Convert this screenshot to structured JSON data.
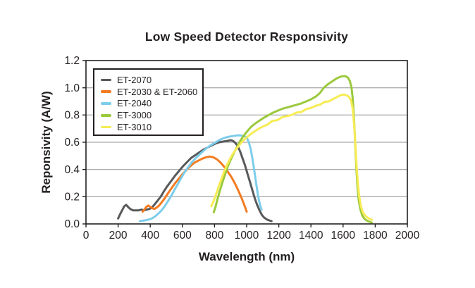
{
  "chart_data": {
    "type": "line",
    "title": "Low Speed Detector Responsivity",
    "xlabel": "Wavelength (nm)",
    "ylabel": "Reponsivity (A/W)",
    "xlim": [
      0,
      2000
    ],
    "ylim": [
      0,
      1.2
    ],
    "xticks": [
      0,
      200,
      400,
      600,
      800,
      1000,
      1200,
      1400,
      1600,
      1800,
      2000
    ],
    "yticks": [
      0.0,
      0.2,
      0.4,
      0.6,
      0.8,
      1.0,
      1.2
    ],
    "grid": "horizontal-only",
    "legend_position": "top-left-inside",
    "axis_color": "#231f20",
    "grid_color": "#8f9093",
    "series": [
      {
        "name": "ET-2070",
        "color": "#58595b",
        "points": [
          [
            200,
            0.04
          ],
          [
            212,
            0.07
          ],
          [
            225,
            0.1
          ],
          [
            238,
            0.13
          ],
          [
            250,
            0.14
          ],
          [
            262,
            0.125
          ],
          [
            275,
            0.11
          ],
          [
            292,
            0.1
          ],
          [
            310,
            0.1
          ],
          [
            328,
            0.1
          ],
          [
            345,
            0.105
          ],
          [
            362,
            0.1
          ],
          [
            378,
            0.105
          ],
          [
            395,
            0.11
          ],
          [
            410,
            0.12
          ],
          [
            425,
            0.14
          ],
          [
            445,
            0.17
          ],
          [
            465,
            0.2
          ],
          [
            485,
            0.24
          ],
          [
            505,
            0.275
          ],
          [
            530,
            0.315
          ],
          [
            555,
            0.355
          ],
          [
            580,
            0.39
          ],
          [
            605,
            0.425
          ],
          [
            630,
            0.455
          ],
          [
            655,
            0.485
          ],
          [
            680,
            0.505
          ],
          [
            705,
            0.525
          ],
          [
            730,
            0.545
          ],
          [
            755,
            0.56
          ],
          [
            780,
            0.575
          ],
          [
            805,
            0.59
          ],
          [
            830,
            0.6
          ],
          [
            855,
            0.605
          ],
          [
            880,
            0.61
          ],
          [
            900,
            0.615
          ],
          [
            915,
            0.61
          ],
          [
            930,
            0.595
          ],
          [
            945,
            0.57
          ],
          [
            960,
            0.53
          ],
          [
            975,
            0.48
          ],
          [
            990,
            0.43
          ],
          [
            1005,
            0.37
          ],
          [
            1020,
            0.31
          ],
          [
            1035,
            0.25
          ],
          [
            1050,
            0.19
          ],
          [
            1065,
            0.14
          ],
          [
            1080,
            0.1
          ],
          [
            1095,
            0.065
          ],
          [
            1110,
            0.045
          ],
          [
            1130,
            0.03
          ],
          [
            1155,
            0.02
          ]
        ]
      },
      {
        "name": "ET-2030 & ET-2060",
        "color": "#f37b21",
        "points": [
          [
            352,
            0.09
          ],
          [
            363,
            0.105
          ],
          [
            376,
            0.125
          ],
          [
            388,
            0.135
          ],
          [
            400,
            0.125
          ],
          [
            413,
            0.115
          ],
          [
            426,
            0.11
          ],
          [
            440,
            0.12
          ],
          [
            455,
            0.135
          ],
          [
            472,
            0.16
          ],
          [
            488,
            0.185
          ],
          [
            505,
            0.215
          ],
          [
            528,
            0.255
          ],
          [
            552,
            0.295
          ],
          [
            576,
            0.33
          ],
          [
            600,
            0.365
          ],
          [
            625,
            0.395
          ],
          [
            650,
            0.425
          ],
          [
            675,
            0.45
          ],
          [
            700,
            0.465
          ],
          [
            725,
            0.48
          ],
          [
            748,
            0.49
          ],
          [
            770,
            0.495
          ],
          [
            792,
            0.49
          ],
          [
            815,
            0.475
          ],
          [
            838,
            0.45
          ],
          [
            860,
            0.42
          ],
          [
            882,
            0.385
          ],
          [
            905,
            0.345
          ],
          [
            928,
            0.295
          ],
          [
            950,
            0.24
          ],
          [
            970,
            0.185
          ],
          [
            988,
            0.13
          ],
          [
            1000,
            0.09
          ]
        ]
      },
      {
        "name": "ET-2040",
        "color": "#7dcdeb",
        "points": [
          [
            335,
            0.02
          ],
          [
            360,
            0.025
          ],
          [
            385,
            0.03
          ],
          [
            410,
            0.04
          ],
          [
            430,
            0.055
          ],
          [
            450,
            0.075
          ],
          [
            470,
            0.1
          ],
          [
            490,
            0.13
          ],
          [
            512,
            0.17
          ],
          [
            535,
            0.215
          ],
          [
            558,
            0.265
          ],
          [
            582,
            0.315
          ],
          [
            606,
            0.365
          ],
          [
            632,
            0.41
          ],
          [
            660,
            0.455
          ],
          [
            688,
            0.49
          ],
          [
            716,
            0.52
          ],
          [
            744,
            0.55
          ],
          [
            772,
            0.575
          ],
          [
            800,
            0.595
          ],
          [
            828,
            0.615
          ],
          [
            856,
            0.63
          ],
          [
            884,
            0.64
          ],
          [
            912,
            0.645
          ],
          [
            938,
            0.65
          ],
          [
            962,
            0.65
          ],
          [
            984,
            0.645
          ],
          [
            1000,
            0.635
          ],
          [
            1012,
            0.605
          ],
          [
            1024,
            0.555
          ],
          [
            1036,
            0.48
          ],
          [
            1048,
            0.39
          ],
          [
            1060,
            0.29
          ],
          [
            1072,
            0.2
          ],
          [
            1083,
            0.14
          ],
          [
            1093,
            0.105
          ]
        ]
      },
      {
        "name": "ET-3000",
        "color": "#9bc93c",
        "points": [
          [
            795,
            0.085
          ],
          [
            806,
            0.125
          ],
          [
            818,
            0.18
          ],
          [
            832,
            0.24
          ],
          [
            848,
            0.3
          ],
          [
            865,
            0.36
          ],
          [
            882,
            0.42
          ],
          [
            900,
            0.47
          ],
          [
            920,
            0.52
          ],
          [
            940,
            0.565
          ],
          [
            960,
            0.61
          ],
          [
            980,
            0.645
          ],
          [
            1000,
            0.675
          ],
          [
            1025,
            0.71
          ],
          [
            1050,
            0.735
          ],
          [
            1075,
            0.755
          ],
          [
            1100,
            0.775
          ],
          [
            1130,
            0.795
          ],
          [
            1160,
            0.815
          ],
          [
            1190,
            0.83
          ],
          [
            1220,
            0.845
          ],
          [
            1250,
            0.855
          ],
          [
            1280,
            0.865
          ],
          [
            1310,
            0.875
          ],
          [
            1340,
            0.885
          ],
          [
            1370,
            0.9
          ],
          [
            1400,
            0.915
          ],
          [
            1430,
            0.935
          ],
          [
            1455,
            0.96
          ],
          [
            1480,
            1.0
          ],
          [
            1505,
            1.025
          ],
          [
            1530,
            1.045
          ],
          [
            1555,
            1.065
          ],
          [
            1580,
            1.08
          ],
          [
            1600,
            1.085
          ],
          [
            1615,
            1.085
          ],
          [
            1630,
            1.075
          ],
          [
            1642,
            1.05
          ],
          [
            1652,
            1.005
          ],
          [
            1660,
            0.92
          ],
          [
            1668,
            0.78
          ],
          [
            1675,
            0.6
          ],
          [
            1682,
            0.42
          ],
          [
            1690,
            0.27
          ],
          [
            1698,
            0.17
          ],
          [
            1708,
            0.105
          ],
          [
            1720,
            0.06
          ],
          [
            1735,
            0.035
          ],
          [
            1755,
            0.02
          ],
          [
            1778,
            0.01
          ]
        ]
      },
      {
        "name": "ET-3010",
        "color": "#f6ec55",
        "points": [
          [
            780,
            0.13
          ],
          [
            795,
            0.17
          ],
          [
            810,
            0.22
          ],
          [
            826,
            0.275
          ],
          [
            843,
            0.33
          ],
          [
            860,
            0.385
          ],
          [
            878,
            0.435
          ],
          [
            897,
            0.48
          ],
          [
            917,
            0.52
          ],
          [
            938,
            0.555
          ],
          [
            958,
            0.585
          ],
          [
            980,
            0.615
          ],
          [
            1000,
            0.635
          ],
          [
            1025,
            0.66
          ],
          [
            1050,
            0.68
          ],
          [
            1075,
            0.7
          ],
          [
            1100,
            0.715
          ],
          [
            1130,
            0.73
          ],
          [
            1160,
            0.757
          ],
          [
            1190,
            0.762
          ],
          [
            1220,
            0.783
          ],
          [
            1250,
            0.792
          ],
          [
            1280,
            0.8
          ],
          [
            1310,
            0.818
          ],
          [
            1340,
            0.822
          ],
          [
            1370,
            0.843
          ],
          [
            1400,
            0.852
          ],
          [
            1430,
            0.868
          ],
          [
            1460,
            0.878
          ],
          [
            1485,
            0.897
          ],
          [
            1510,
            0.9
          ],
          [
            1535,
            0.916
          ],
          [
            1560,
            0.93
          ],
          [
            1582,
            0.945
          ],
          [
            1602,
            0.95
          ],
          [
            1622,
            0.945
          ],
          [
            1638,
            0.932
          ],
          [
            1650,
            0.905
          ],
          [
            1660,
            0.845
          ],
          [
            1669,
            0.73
          ],
          [
            1677,
            0.57
          ],
          [
            1685,
            0.41
          ],
          [
            1693,
            0.29
          ],
          [
            1701,
            0.2
          ],
          [
            1711,
            0.13
          ],
          [
            1723,
            0.085
          ],
          [
            1738,
            0.06
          ],
          [
            1758,
            0.042
          ],
          [
            1780,
            0.03
          ]
        ]
      }
    ]
  }
}
